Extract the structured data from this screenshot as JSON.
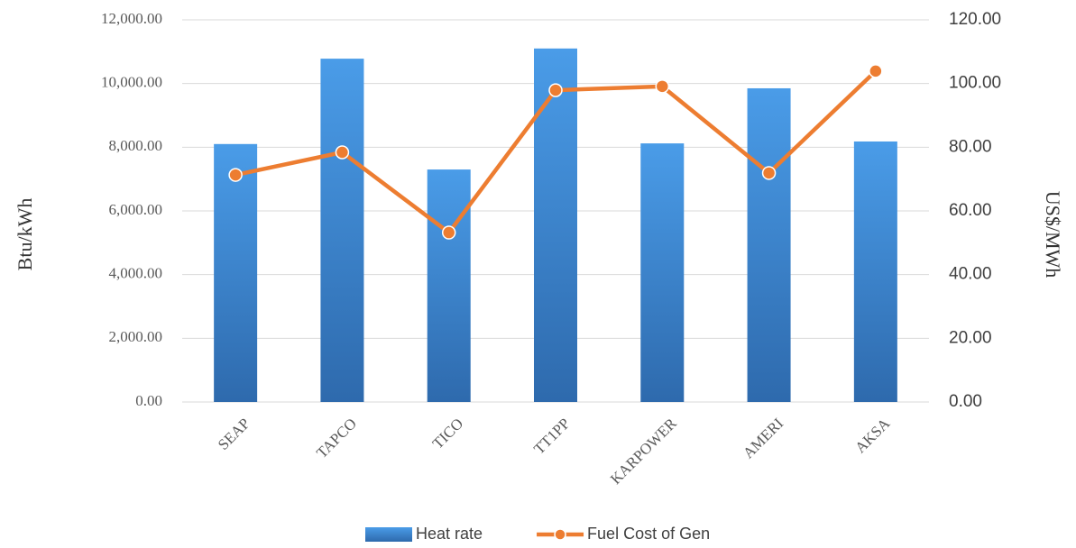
{
  "chart_data": {
    "type": "combo",
    "categories": [
      "SEAP",
      "TAPCO",
      "TICO",
      "TT1PP",
      "KARPOWER",
      "AMERI",
      "AKSA"
    ],
    "series": [
      {
        "name": "Heat rate",
        "type": "bar",
        "axis": "y",
        "color": "#3f8ad6",
        "values": [
          8100,
          10780,
          7300,
          11100,
          8120,
          9850,
          8180
        ]
      },
      {
        "name": "Fuel Cost of Gen",
        "type": "line",
        "axis": "y2",
        "color": "#ed7d31",
        "values": [
          71.3,
          78.4,
          53.2,
          97.9,
          99.1,
          71.9,
          103.9
        ]
      }
    ],
    "ylabel": "Btu/kWh",
    "y2label": "US$/MWh",
    "ylim": [
      0,
      12000
    ],
    "yticks": [
      {
        "value": 0,
        "label": "0.00"
      },
      {
        "value": 2000,
        "label": "2,000.00"
      },
      {
        "value": 4000,
        "label": "4,000.00"
      },
      {
        "value": 6000,
        "label": "6,000.00"
      },
      {
        "value": 8000,
        "label": "8,000.00"
      },
      {
        "value": 10000,
        "label": "10,000.00"
      },
      {
        "value": 12000,
        "label": "12,000.00"
      }
    ],
    "y2lim": [
      0,
      120
    ],
    "y2ticks": [
      {
        "value": 0,
        "label": "0.00"
      },
      {
        "value": 20,
        "label": "20.00"
      },
      {
        "value": 40,
        "label": "40.00"
      },
      {
        "value": 60,
        "label": "60.00"
      },
      {
        "value": 80,
        "label": "80.00"
      },
      {
        "value": 100,
        "label": "100.00"
      },
      {
        "value": 120,
        "label": "120.00"
      }
    ],
    "grid": true,
    "legend": "bottom"
  }
}
